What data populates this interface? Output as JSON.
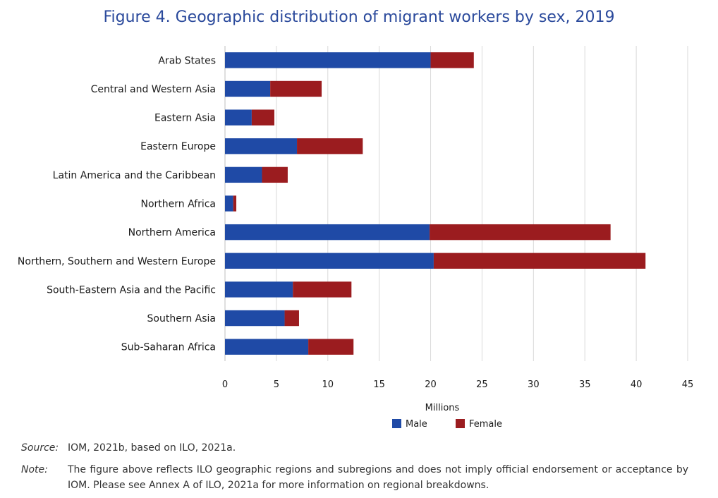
{
  "chart_data": {
    "type": "bar",
    "orientation": "horizontal",
    "stacked": true,
    "title": "Figure 4. Geographic distribution of migrant workers by sex, 2019",
    "xlabel": "Millions",
    "ylabel": "",
    "xlim": [
      0,
      45
    ],
    "xticks": [
      "0",
      "5",
      "10",
      "15",
      "20",
      "25",
      "30",
      "35",
      "40",
      "45"
    ],
    "grid": "vertical",
    "legend_position": "bottom",
    "categories": [
      "Arab States",
      "Central and Western Asia",
      "Eastern Asia",
      "Eastern Europe",
      "Latin America and the Caribbean",
      "Northern Africa",
      "Northern America",
      "Northern, Southern and Western Europe",
      "South-Eastern Asia and the Pacific",
      "Southern Asia",
      "Sub-Saharan Africa"
    ],
    "series": [
      {
        "name": "Male",
        "color": "#1f4aa6",
        "values": [
          20.0,
          4.4,
          2.6,
          7.0,
          3.6,
          0.8,
          19.9,
          20.3,
          6.6,
          5.8,
          8.1
        ]
      },
      {
        "name": "Female",
        "color": "#9b1c1f",
        "values": [
          4.2,
          5.0,
          2.2,
          6.4,
          2.5,
          0.3,
          17.6,
          20.6,
          5.7,
          1.4,
          4.4
        ]
      }
    ]
  },
  "notes": {
    "source_label": "Source:",
    "source_text": "IOM, 2021b, based on ILO, 2021a.",
    "note_label": "Note:",
    "note_text": "The figure above reflects ILO geographic regions and subregions and does not imply official endorsement or acceptance by IOM. Please see Annex A of ILO, 2021a for more information on regional breakdowns."
  }
}
